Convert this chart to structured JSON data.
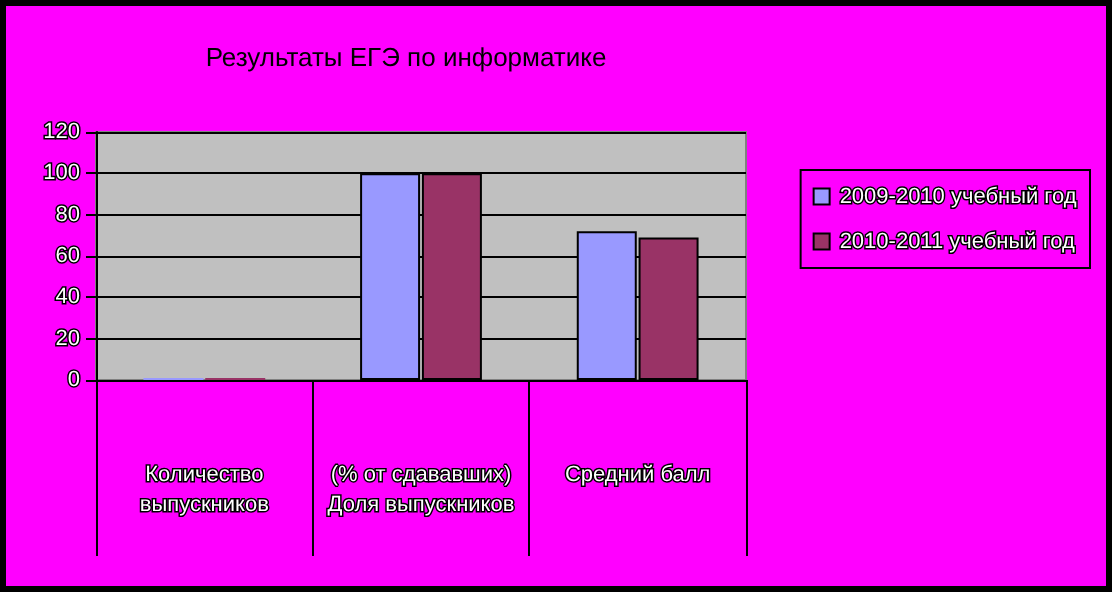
{
  "chart_data": {
    "type": "bar",
    "title": "Результаты ЕГЭ по информатике",
    "categories": [
      "Количество выпускников",
      "(% от сдававших) Доля выпускников",
      "Средний балл"
    ],
    "series": [
      {
        "name": "2009-2010 учебный год",
        "color": "#9999ff",
        "values": [
          1,
          100,
          72
        ]
      },
      {
        "name": "2010-2011 учебный год",
        "color": "#993366",
        "values": [
          1,
          100,
          69
        ]
      }
    ],
    "ylim": [
      0,
      120
    ],
    "yticks": [
      0,
      20,
      40,
      60,
      80,
      100,
      120
    ],
    "grid": true,
    "legend": "right"
  }
}
